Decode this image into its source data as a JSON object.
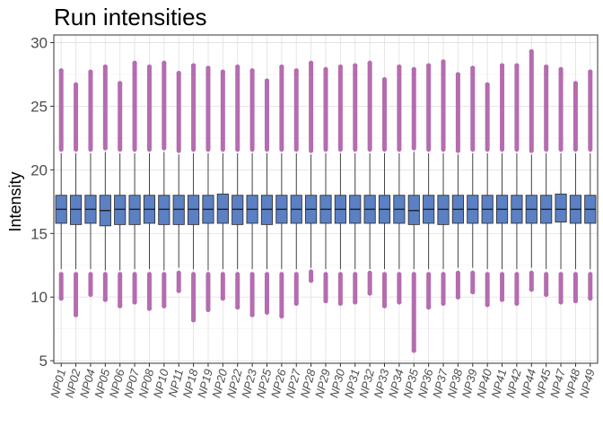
{
  "chart_data": {
    "type": "boxplot",
    "title": "Run intensities",
    "xlabel": "",
    "ylabel": "Intensity",
    "ylim": [
      4.8,
      30.6
    ],
    "yticks": [
      5,
      10,
      15,
      20,
      25,
      30
    ],
    "grid": true,
    "legend": "none",
    "box_fill": "#5b80c4",
    "outlier_color": "#b56cb0",
    "categories": [
      "NP01",
      "NP02",
      "NP04",
      "NP05",
      "NP06",
      "NP07",
      "NP08",
      "NP10",
      "NP11",
      "NP18",
      "NP19",
      "NP20",
      "NP22",
      "NP23",
      "NP25",
      "NP26",
      "NP27",
      "NP28",
      "NP29",
      "NP30",
      "NP31",
      "NP32",
      "NP33",
      "NP34",
      "NP35",
      "NP36",
      "NP37",
      "NP38",
      "NP39",
      "NP40",
      "NP41",
      "NP42",
      "NP44",
      "NP45",
      "NP47",
      "NP48",
      "NP49"
    ],
    "boxes": [
      {
        "min": 12.2,
        "q1": 15.8,
        "median": 16.9,
        "q3": 18.0,
        "max": 21.3,
        "outlier_low": [
          9.9,
          11.8
        ],
        "outlier_high": [
          21.6,
          27.8
        ]
      },
      {
        "min": 12.2,
        "q1": 15.7,
        "median": 16.9,
        "q3": 18.0,
        "max": 21.3,
        "outlier_low": [
          8.6,
          11.8
        ],
        "outlier_high": [
          21.6,
          26.7
        ]
      },
      {
        "min": 12.2,
        "q1": 15.8,
        "median": 16.9,
        "q3": 18.0,
        "max": 21.3,
        "outlier_low": [
          10.2,
          11.8
        ],
        "outlier_high": [
          21.6,
          27.7
        ]
      },
      {
        "min": 12.1,
        "q1": 15.6,
        "median": 16.8,
        "q3": 18.0,
        "max": 21.4,
        "outlier_low": [
          9.8,
          11.8
        ],
        "outlier_high": [
          21.7,
          28.1
        ]
      },
      {
        "min": 12.1,
        "q1": 15.7,
        "median": 16.9,
        "q3": 18.0,
        "max": 21.3,
        "outlier_low": [
          9.3,
          11.8
        ],
        "outlier_high": [
          21.6,
          26.8
        ]
      },
      {
        "min": 12.2,
        "q1": 15.7,
        "median": 16.9,
        "q3": 18.0,
        "max": 21.3,
        "outlier_low": [
          9.6,
          11.8
        ],
        "outlier_high": [
          21.6,
          28.4
        ]
      },
      {
        "min": 12.2,
        "q1": 15.8,
        "median": 16.9,
        "q3": 18.0,
        "max": 21.3,
        "outlier_low": [
          9.1,
          11.8
        ],
        "outlier_high": [
          21.6,
          28.1
        ]
      },
      {
        "min": 12.1,
        "q1": 15.7,
        "median": 16.9,
        "q3": 18.0,
        "max": 21.4,
        "outlier_low": [
          9.3,
          11.8
        ],
        "outlier_high": [
          21.7,
          28.4
        ]
      },
      {
        "min": 12.3,
        "q1": 15.7,
        "median": 16.9,
        "q3": 18.0,
        "max": 21.2,
        "outlier_low": [
          10.5,
          11.9
        ],
        "outlier_high": [
          21.5,
          27.6
        ]
      },
      {
        "min": 12.2,
        "q1": 15.7,
        "median": 16.9,
        "q3": 18.0,
        "max": 21.3,
        "outlier_low": [
          8.2,
          11.8
        ],
        "outlier_high": [
          21.6,
          28.2
        ]
      },
      {
        "min": 12.1,
        "q1": 15.8,
        "median": 16.9,
        "q3": 18.0,
        "max": 21.3,
        "outlier_low": [
          9.0,
          11.8
        ],
        "outlier_high": [
          21.6,
          28.0
        ]
      },
      {
        "min": 12.2,
        "q1": 15.8,
        "median": 16.9,
        "q3": 18.1,
        "max": 21.3,
        "outlier_low": [
          9.9,
          11.8
        ],
        "outlier_high": [
          21.6,
          27.7
        ]
      },
      {
        "min": 12.2,
        "q1": 15.7,
        "median": 16.9,
        "q3": 18.0,
        "max": 21.3,
        "outlier_low": [
          9.2,
          11.8
        ],
        "outlier_high": [
          21.6,
          28.1
        ]
      },
      {
        "min": 12.2,
        "q1": 15.8,
        "median": 16.9,
        "q3": 18.0,
        "max": 21.3,
        "outlier_low": [
          8.6,
          11.8
        ],
        "outlier_high": [
          21.6,
          27.8
        ]
      },
      {
        "min": 12.2,
        "q1": 15.7,
        "median": 16.9,
        "q3": 18.0,
        "max": 21.3,
        "outlier_low": [
          8.8,
          11.8
        ],
        "outlier_high": [
          21.6,
          27.0
        ]
      },
      {
        "min": 12.2,
        "q1": 15.8,
        "median": 16.9,
        "q3": 18.0,
        "max": 21.3,
        "outlier_low": [
          8.5,
          11.8
        ],
        "outlier_high": [
          21.6,
          28.1
        ]
      },
      {
        "min": 12.2,
        "q1": 15.8,
        "median": 16.9,
        "q3": 18.0,
        "max": 21.3,
        "outlier_low": [
          9.5,
          11.8
        ],
        "outlier_high": [
          21.6,
          27.8
        ]
      },
      {
        "min": 12.3,
        "q1": 15.8,
        "median": 16.9,
        "q3": 18.0,
        "max": 21.2,
        "outlier_low": [
          11.3,
          12.0
        ],
        "outlier_high": [
          21.5,
          28.4
        ]
      },
      {
        "min": 12.2,
        "q1": 15.8,
        "median": 16.9,
        "q3": 18.0,
        "max": 21.3,
        "outlier_low": [
          9.7,
          11.8
        ],
        "outlier_high": [
          21.6,
          27.9
        ]
      },
      {
        "min": 12.2,
        "q1": 15.8,
        "median": 16.9,
        "q3": 18.0,
        "max": 21.3,
        "outlier_low": [
          9.5,
          11.8
        ],
        "outlier_high": [
          21.6,
          28.1
        ]
      },
      {
        "min": 12.2,
        "q1": 15.8,
        "median": 16.9,
        "q3": 18.0,
        "max": 21.3,
        "outlier_low": [
          9.6,
          11.8
        ],
        "outlier_high": [
          21.6,
          28.2
        ]
      },
      {
        "min": 12.2,
        "q1": 15.8,
        "median": 16.9,
        "q3": 18.0,
        "max": 21.3,
        "outlier_low": [
          10.3,
          11.9
        ],
        "outlier_high": [
          21.6,
          28.4
        ]
      },
      {
        "min": 12.2,
        "q1": 15.8,
        "median": 16.9,
        "q3": 18.0,
        "max": 21.3,
        "outlier_low": [
          9.3,
          11.8
        ],
        "outlier_high": [
          21.6,
          27.1
        ]
      },
      {
        "min": 12.2,
        "q1": 15.8,
        "median": 16.9,
        "q3": 18.0,
        "max": 21.3,
        "outlier_low": [
          9.6,
          11.8
        ],
        "outlier_high": [
          21.6,
          28.1
        ]
      },
      {
        "min": 12.2,
        "q1": 15.7,
        "median": 16.8,
        "q3": 18.0,
        "max": 21.4,
        "outlier_low": [
          5.8,
          11.8
        ],
        "outlier_high": [
          21.7,
          27.9
        ]
      },
      {
        "min": 12.2,
        "q1": 15.8,
        "median": 16.9,
        "q3": 18.0,
        "max": 21.3,
        "outlier_low": [
          9.2,
          11.8
        ],
        "outlier_high": [
          21.6,
          28.2
        ]
      },
      {
        "min": 12.2,
        "q1": 15.7,
        "median": 16.9,
        "q3": 18.0,
        "max": 21.3,
        "outlier_low": [
          9.5,
          11.8
        ],
        "outlier_high": [
          21.6,
          28.5
        ]
      },
      {
        "min": 12.3,
        "q1": 15.8,
        "median": 16.9,
        "q3": 18.0,
        "max": 21.2,
        "outlier_low": [
          10.0,
          11.9
        ],
        "outlier_high": [
          21.5,
          27.5
        ]
      },
      {
        "min": 12.3,
        "q1": 15.8,
        "median": 16.9,
        "q3": 18.0,
        "max": 21.3,
        "outlier_low": [
          10.4,
          11.9
        ],
        "outlier_high": [
          21.6,
          28.0
        ]
      },
      {
        "min": 12.2,
        "q1": 15.8,
        "median": 16.9,
        "q3": 18.0,
        "max": 21.3,
        "outlier_low": [
          9.4,
          11.8
        ],
        "outlier_high": [
          21.6,
          26.7
        ]
      },
      {
        "min": 12.2,
        "q1": 15.8,
        "median": 16.9,
        "q3": 18.0,
        "max": 21.3,
        "outlier_low": [
          9.8,
          11.8
        ],
        "outlier_high": [
          21.6,
          28.2
        ]
      },
      {
        "min": 12.2,
        "q1": 15.8,
        "median": 16.9,
        "q3": 18.0,
        "max": 21.3,
        "outlier_low": [
          9.5,
          11.8
        ],
        "outlier_high": [
          21.6,
          28.2
        ]
      },
      {
        "min": 12.3,
        "q1": 15.8,
        "median": 16.9,
        "q3": 18.0,
        "max": 21.2,
        "outlier_low": [
          10.6,
          11.9
        ],
        "outlier_high": [
          21.5,
          29.3
        ]
      },
      {
        "min": 12.2,
        "q1": 15.8,
        "median": 16.9,
        "q3": 18.0,
        "max": 21.3,
        "outlier_low": [
          10.2,
          11.8
        ],
        "outlier_high": [
          21.6,
          28.1
        ]
      },
      {
        "min": 12.2,
        "q1": 15.9,
        "median": 16.9,
        "q3": 18.1,
        "max": 21.3,
        "outlier_low": [
          9.6,
          11.8
        ],
        "outlier_high": [
          21.6,
          27.9
        ]
      },
      {
        "min": 12.2,
        "q1": 15.8,
        "median": 16.9,
        "q3": 18.0,
        "max": 21.3,
        "outlier_low": [
          9.7,
          11.8
        ],
        "outlier_high": [
          21.6,
          26.8
        ]
      },
      {
        "min": 12.2,
        "q1": 15.8,
        "median": 16.9,
        "q3": 18.0,
        "max": 21.3,
        "outlier_low": [
          9.9,
          11.8
        ],
        "outlier_high": [
          21.6,
          27.7
        ]
      }
    ]
  }
}
